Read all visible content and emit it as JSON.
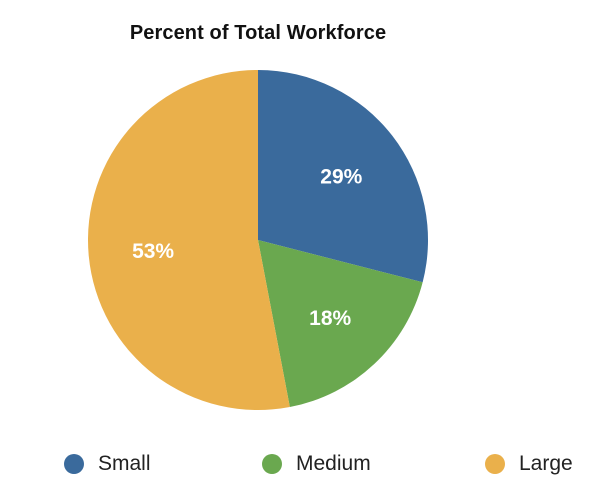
{
  "chart_data": {
    "type": "pie",
    "title": "Percent of Total Workforce",
    "categories": [
      "Small",
      "Medium",
      "Large"
    ],
    "values": [
      29,
      18,
      53
    ],
    "labels": [
      "29%",
      "18%",
      "53%"
    ],
    "colors": [
      "#3a6a9c",
      "#6aa84f",
      "#eab04b"
    ],
    "start_angle_deg": 0,
    "direction": "clockwise",
    "legend_position": "bottom"
  }
}
